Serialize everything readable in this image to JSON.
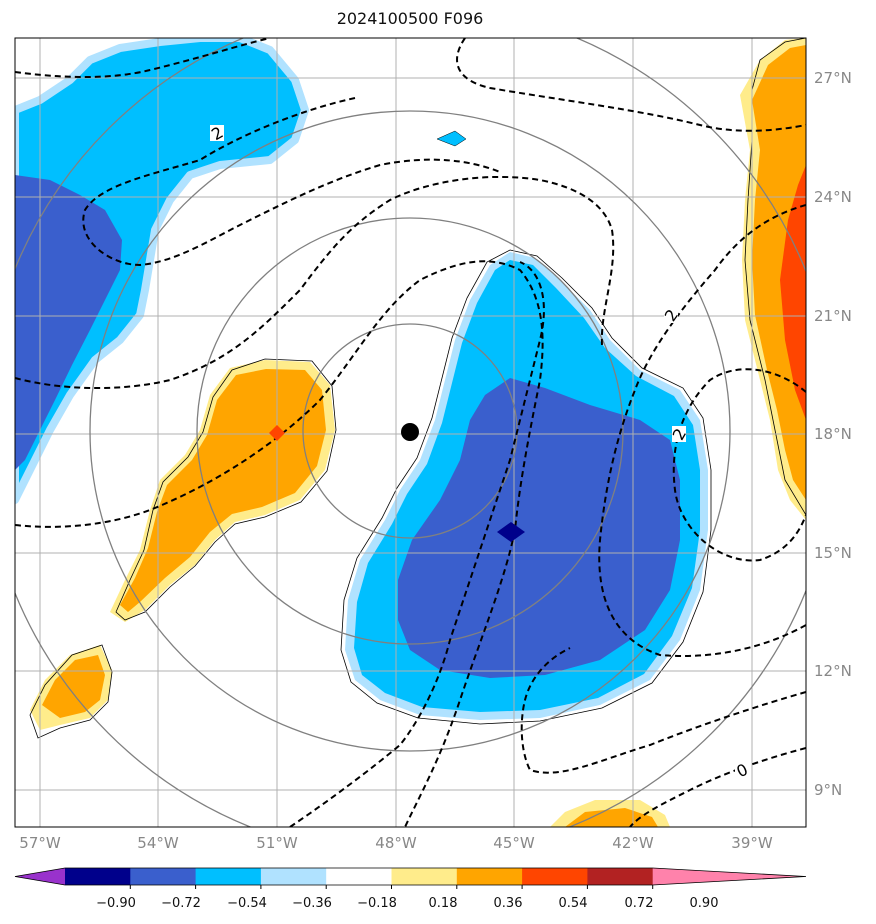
{
  "title": "2024100500 F096",
  "lon_labels": [
    "57°W",
    "54°W",
    "51°W",
    "48°W",
    "45°W",
    "42°W",
    "39°W"
  ],
  "lat_labels": [
    "27°N",
    "24°N",
    "21°N",
    "18°N",
    "15°N",
    "12°N",
    "9°N"
  ],
  "contour_labels": [
    "2",
    "2",
    "2",
    "0"
  ],
  "colorbar": {
    "ticks": [
      "−0.90",
      "−0.72",
      "−0.54",
      "−0.36",
      "−0.18",
      "0.18",
      "0.36",
      "0.54",
      "0.72",
      "0.90"
    ],
    "colors": [
      "#9932cc",
      "#00008b",
      "#3a5fcd",
      "#00bfff",
      "#b0e2ff",
      "#ffffff",
      "#ffec8b",
      "#ffa500",
      "#ff4500",
      "#b22222",
      "#ff82ab"
    ]
  },
  "colors": {
    "dark_blue": "#3a5fcd",
    "light_blue": "#00bfff",
    "pale_blue": "#b0e2ff",
    "orange": "#ffa500",
    "yellow": "#ffec8b",
    "red_orange": "#ff4500",
    "navy": "#00008b",
    "grid": "#b0b0b0",
    "range_rings": "#808080"
  },
  "markers": {
    "center": "black-dot",
    "min_marker": "navy-diamond",
    "max_marker": "red-diamond"
  }
}
